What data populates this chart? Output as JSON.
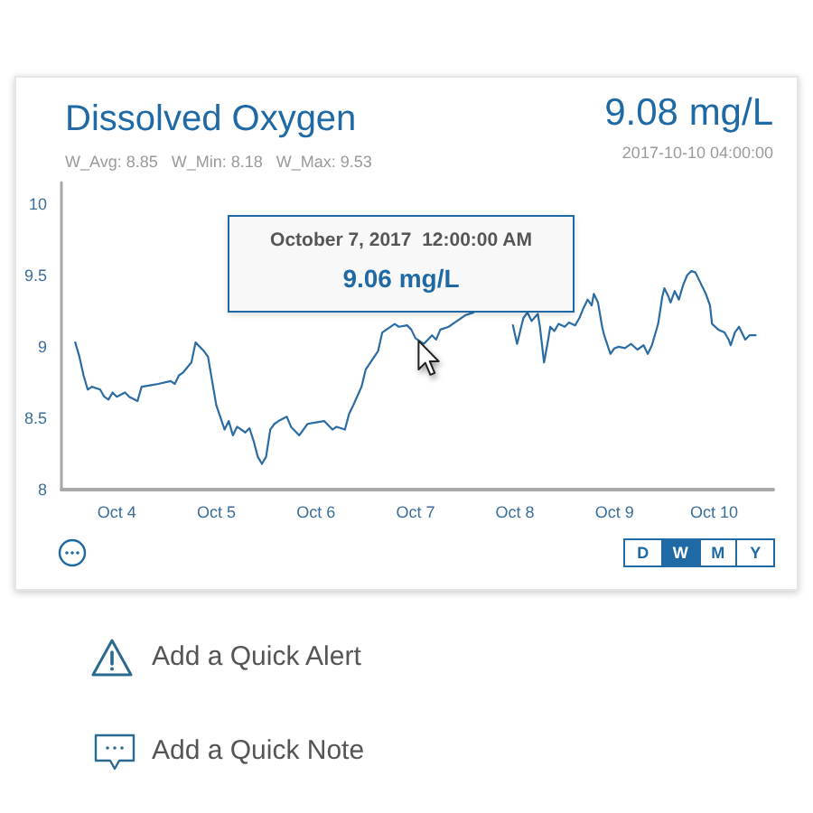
{
  "chart_data": {
    "type": "line",
    "title": "Dissolved Oxygen",
    "subtitle": "W_Avg: 8.85   W_Min: 8.18   W_Max: 9.53",
    "annotations": [
      "9.08 mg/L",
      "2017-10-10 04:00:00",
      "October 7, 2017  12:00:00 AM",
      "9.06 mg/L",
      "D",
      "W",
      "M",
      "Y",
      "Add a Quick Alert",
      "Add a Quick Note"
    ],
    "x": [
      "2017-10-03T14:00",
      "2017-10-03T15:00",
      "2017-10-03T16:00",
      "2017-10-03T17:00",
      "2017-10-03T18:00",
      "2017-10-03T20:00",
      "2017-10-03T21:00",
      "2017-10-03T22:00",
      "2017-10-03T23:00",
      "2017-10-04T00:00",
      "2017-10-04T02:00",
      "2017-10-04T03:00",
      "2017-10-04T05:00",
      "2017-10-04T06:00",
      "2017-10-04T08:00",
      "2017-10-04T10:00",
      "2017-10-04T13:00",
      "2017-10-04T14:00",
      "2017-10-04T15:00",
      "2017-10-04T16:00",
      "2017-10-04T18:00",
      "2017-10-04T19:00",
      "2017-10-04T21:00",
      "2017-10-04T22:00",
      "2017-10-04T23:00",
      "2017-10-05T00:00",
      "2017-10-05T02:00",
      "2017-10-05T03:00",
      "2017-10-05T04:00",
      "2017-10-05T05:00",
      "2017-10-05T07:00",
      "2017-10-05T08:00",
      "2017-10-05T09:00",
      "2017-10-05T10:00",
      "2017-10-05T11:00",
      "2017-10-05T12:00",
      "2017-10-05T13:00",
      "2017-10-05T14:00",
      "2017-10-05T15:00",
      "2017-10-05T17:00",
      "2017-10-05T18:00",
      "2017-10-05T20:00",
      "2017-10-05T22:00",
      "2017-10-06T00:00",
      "2017-10-06T02:00",
      "2017-10-06T04:00",
      "2017-10-06T05:00",
      "2017-10-06T07:00",
      "2017-10-06T08:00",
      "2017-10-06T09:00",
      "2017-10-06T11:00",
      "2017-10-06T12:00",
      "2017-10-06T15:00",
      "2017-10-06T16:00",
      "2017-10-06T17:00",
      "2017-10-06T19:00",
      "2017-10-06T20:00",
      "2017-10-06T22:00",
      "2017-10-06T23:00",
      "2017-10-07T00:00",
      "2017-10-07T02:00",
      "2017-10-07T04:00",
      "2017-10-07T05:00",
      "2017-10-07T06:00",
      "2017-10-07T08:00",
      "2017-10-07T10:00",
      "2017-10-07T12:00",
      "2017-10-07T14:00",
      "2017-10-07T18:00",
      "2017-10-07T23:00",
      "2017-10-07T23:30",
      "2017-10-08T00:30",
      "2017-10-08T01:30",
      "2017-10-08T02:00",
      "2017-10-08T03:00",
      "2017-10-08T04:00",
      "2017-10-08T05:30",
      "2017-10-08T06:00",
      "2017-10-08T07:00",
      "2017-10-08T08:00",
      "2017-10-08T08:30",
      "2017-10-08T09:30",
      "2017-10-08T10:30",
      "2017-10-08T12:00",
      "2017-10-08T13:00",
      "2017-10-08T14:30",
      "2017-10-08T15:30",
      "2017-10-08T16:30",
      "2017-10-08T17:30",
      "2017-10-08T18:30",
      "2017-10-08T19:00",
      "2017-10-08T20:00",
      "2017-10-08T21:00",
      "2017-10-08T21:30",
      "2017-10-08T23:00",
      "2017-10-09T00:00",
      "2017-10-09T01:00",
      "2017-10-09T02:30",
      "2017-10-09T04:00",
      "2017-10-09T05:30",
      "2017-10-09T07:00",
      "2017-10-09T08:00",
      "2017-10-09T09:00",
      "2017-10-09T10:30",
      "2017-10-09T11:30",
      "2017-10-09T12:00",
      "2017-10-09T13:00",
      "2017-10-09T13:30",
      "2017-10-09T14:30",
      "2017-10-09T15:30",
      "2017-10-09T16:30",
      "2017-10-09T17:30",
      "2017-10-09T18:30",
      "2017-10-09T19:30",
      "2017-10-09T21:00",
      "2017-10-09T22:00",
      "2017-10-09T23:00",
      "2017-10-09T23:30",
      "2017-10-10T01:00",
      "2017-10-10T02:30",
      "2017-10-10T03:30",
      "2017-10-10T04:00",
      "2017-10-10T05:00",
      "2017-10-10T06:00",
      "2017-10-10T06:30",
      "2017-10-10T07:30",
      "2017-10-10T08:30",
      "2017-10-10T10:00"
    ],
    "values": [
      9.03,
      8.93,
      8.8,
      8.7,
      8.72,
      8.7,
      8.65,
      8.63,
      8.68,
      8.65,
      8.68,
      8.65,
      8.62,
      8.72,
      8.73,
      8.74,
      8.76,
      8.74,
      8.8,
      8.82,
      8.89,
      9.03,
      8.97,
      8.93,
      8.76,
      8.59,
      8.42,
      8.48,
      8.38,
      8.44,
      8.4,
      8.43,
      8.34,
      8.23,
      8.18,
      8.23,
      8.42,
      8.46,
      8.48,
      8.51,
      8.44,
      8.38,
      8.46,
      8.47,
      8.48,
      8.42,
      8.44,
      8.42,
      8.53,
      8.59,
      8.72,
      8.84,
      8.97,
      9.1,
      9.12,
      9.16,
      9.14,
      9.15,
      9.12,
      9.06,
      9.02,
      9.08,
      9.05,
      9.12,
      9.14,
      9.18,
      9.22,
      9.24,
      null,
      null,
      9.15,
      9.02,
      9.14,
      9.2,
      9.24,
      9.18,
      9.23,
      9.14,
      8.89,
      9.05,
      9.14,
      9.11,
      9.16,
      9.14,
      9.17,
      9.15,
      9.2,
      9.27,
      9.33,
      9.29,
      9.37,
      9.31,
      9.14,
      9.08,
      8.95,
      8.99,
      9.0,
      8.99,
      9.02,
      8.98,
      9.01,
      8.95,
      9.01,
      9.16,
      9.35,
      9.41,
      9.35,
      9.31,
      9.39,
      9.33,
      9.43,
      9.5,
      9.53,
      9.52,
      9.43,
      9.37,
      9.29,
      9.16,
      9.12,
      9.1,
      9.05,
      9.01,
      9.1,
      9.14,
      9.11,
      9.05,
      9.08,
      9.08
    ],
    "color": "#2b6ca3",
    "marker": "none",
    "xlim": [
      "2017-10-03T10:40",
      "2017-10-10T14:15"
    ],
    "xticks": [
      {
        "value": "2017-10-04",
        "label": "Oct 4"
      },
      {
        "value": "2017-10-05",
        "label": "Oct 5"
      },
      {
        "value": "2017-10-06",
        "label": "Oct 6"
      },
      {
        "value": "2017-10-07",
        "label": "Oct 7"
      },
      {
        "value": "2017-10-08",
        "label": "Oct 8"
      },
      {
        "value": "2017-10-09",
        "label": "Oct 9"
      },
      {
        "value": "2017-10-10",
        "label": "Oct 10"
      }
    ],
    "ylim": [
      8,
      10.15
    ],
    "yticks": [
      8,
      8.5,
      9,
      9.5,
      10
    ]
  }
}
